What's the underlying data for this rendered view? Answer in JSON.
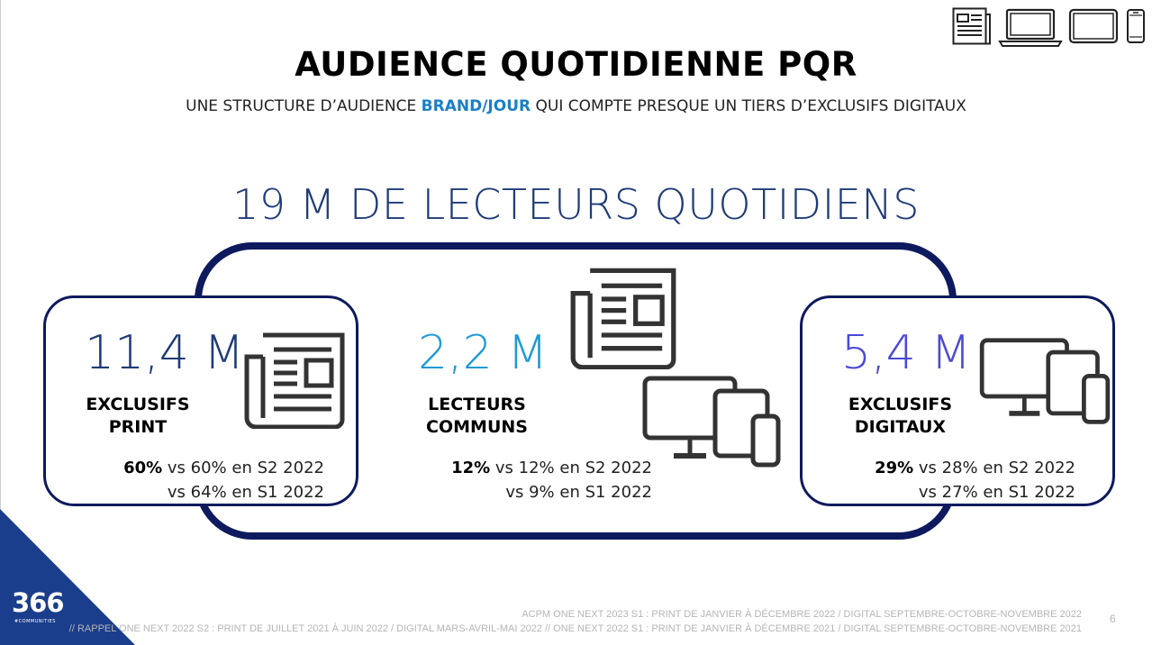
{
  "header": {
    "title": "AUDIENCE QUOTIDIENNE PQR",
    "subtitle_before": "UNE STRUCTURE D’AUDIENCE ",
    "subtitle_highlight": "BRAND/JOUR",
    "subtitle_after": " QUI COMPTE PRESQUE UN TIERS D’EXCLUSIFS DIGITAUX",
    "device_icons": [
      "newspaper-icon",
      "laptop-icon",
      "tablet-icon",
      "phone-icon"
    ]
  },
  "headline": "19 M DE LECTEURS QUOTIDIENS",
  "cards": [
    {
      "value": "11,4 M",
      "value_color": "#1f3b78",
      "label_line1": "EXCLUSIFS",
      "label_line2": "PRINT",
      "pct": "60%",
      "vs1": " vs 60% en S2 2022",
      "vs2": "vs 64% en S1 2022",
      "icon": "newspaper-icon"
    },
    {
      "value": "2,2 M",
      "value_color": "#1e9ad6",
      "label_line1": "LECTEURS",
      "label_line2": "COMMUNS",
      "pct": "12%",
      "vs1": " vs 12% en S2 2022",
      "vs2": "vs 9% en S1 2022",
      "icon": "newspaper-and-devices-icon"
    },
    {
      "value": "5,4 M",
      "value_color": "#4a4ad6",
      "label_line1": "EXCLUSIFS",
      "label_line2": "DIGITAUX",
      "pct": "29%",
      "vs1": " vs 28% en S2 2022",
      "vs2": "vs 27% en S1 2022",
      "icon": "devices-icon"
    }
  ],
  "footer": {
    "line1": "ACPM ONE NEXT 2023 S1 : PRINT DE JANVIER À DÉCEMBRE 2022 / DIGITAL SEPTEMBRE-OCTOBRE-NOVEMBRE 2022",
    "line2": "// RAPPEL ONE NEXT 2022 S2 : PRINT DE JUILLET 2021 À JUIN 2022 / DIGITAL MARS-AVRIL-MAI 2022 // ONE NEXT 2022 S1 : PRINT DE JANVIER À DÉCEMBRE 2021 / DIGITAL SEPTEMBRE-OCTOBRE-NOVEMBRE 2021",
    "page_number": "6"
  },
  "logo": {
    "text": "366",
    "subtext": "#COMMUNITIES",
    "color": "#1a3e8c"
  }
}
